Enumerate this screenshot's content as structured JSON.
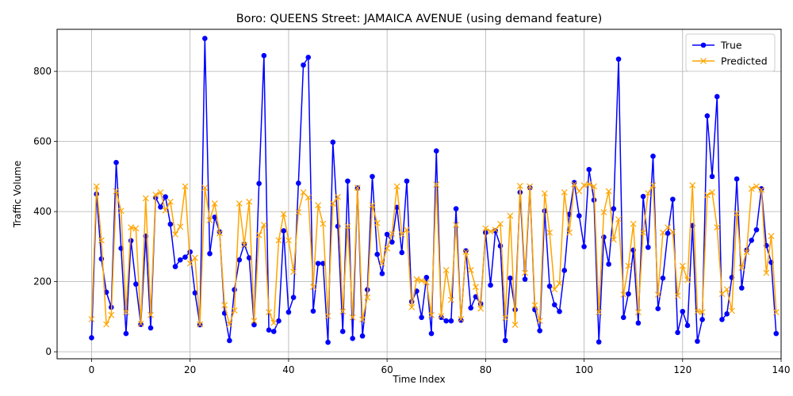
{
  "chart_data": {
    "type": "line",
    "title": "Boro: QUEENS Street: JAMAICA AVENUE (using demand feature)",
    "xlabel": "Time Index",
    "ylabel": "Traffic Volume",
    "xlim": [
      -7,
      140
    ],
    "ylim": [
      -20,
      920
    ],
    "xticks": [
      0,
      20,
      40,
      60,
      80,
      100,
      120,
      140
    ],
    "yticks": [
      0,
      200,
      400,
      600,
      800
    ],
    "grid": true,
    "legend_position": "top-right",
    "series": [
      {
        "name": "True",
        "color": "#0000ff",
        "marker": "circle",
        "values": [
          40,
          450,
          265,
          170,
          127,
          540,
          295,
          52,
          317,
          193,
          78,
          330,
          68,
          440,
          413,
          442,
          364,
          243,
          262,
          270,
          285,
          168,
          77,
          894,
          280,
          384,
          342,
          110,
          32,
          177,
          262,
          307,
          268,
          77,
          480,
          845,
          62,
          58,
          88,
          345,
          113,
          155,
          481,
          818,
          840,
          116,
          252,
          252,
          27,
          598,
          358,
          58,
          487,
          38,
          467,
          45,
          177,
          500,
          278,
          223,
          335,
          313,
          412,
          283,
          487,
          143,
          173,
          98,
          212,
          52,
          573,
          98,
          88,
          88,
          408,
          90,
          288,
          125,
          157,
          137,
          340,
          190,
          345,
          302,
          32,
          210,
          120,
          455,
          207,
          468,
          120,
          60,
          402,
          187,
          134,
          115,
          232,
          392,
          483,
          388,
          300,
          520,
          433,
          28,
          327,
          250,
          408,
          835,
          98,
          165,
          290,
          82,
          443,
          298,
          558,
          123,
          210,
          338,
          435,
          55,
          115,
          75,
          360,
          30,
          92,
          673,
          500,
          728,
          92,
          108,
          212,
          493,
          182,
          290,
          318,
          348,
          465,
          303,
          255,
          52
        ]
      },
      {
        "name": "Predicted",
        "color": "#ffa500",
        "marker": "x",
        "values": [
          93,
          472,
          318,
          78,
          105,
          458,
          402,
          113,
          355,
          352,
          80,
          438,
          105,
          448,
          455,
          403,
          428,
          335,
          357,
          472,
          252,
          268,
          78,
          468,
          375,
          423,
          338,
          133,
          78,
          118,
          423,
          305,
          428,
          88,
          333,
          362,
          113,
          83,
          318,
          393,
          318,
          228,
          398,
          455,
          440,
          185,
          418,
          365,
          102,
          423,
          442,
          115,
          358,
          98,
          468,
          92,
          155,
          418,
          367,
          252,
          295,
          337,
          472,
          335,
          348,
          127,
          207,
          203,
          198,
          105,
          477,
          102,
          233,
          148,
          362,
          93,
          285,
          233,
          185,
          123,
          352,
          343,
          348,
          365,
          97,
          388,
          77,
          473,
          225,
          472,
          133,
          88,
          452,
          340,
          178,
          195,
          455,
          340,
          478,
          458,
          475,
          478,
          472,
          113,
          398,
          458,
          320,
          378,
          163,
          245,
          365,
          113,
          340,
          452,
          475,
          163,
          340,
          355,
          342,
          160,
          245,
          205,
          475,
          115,
          113,
          447,
          455,
          355,
          165,
          178,
          117,
          395,
          240,
          285,
          465,
          472,
          462,
          225,
          330,
          113
        ]
      }
    ]
  }
}
